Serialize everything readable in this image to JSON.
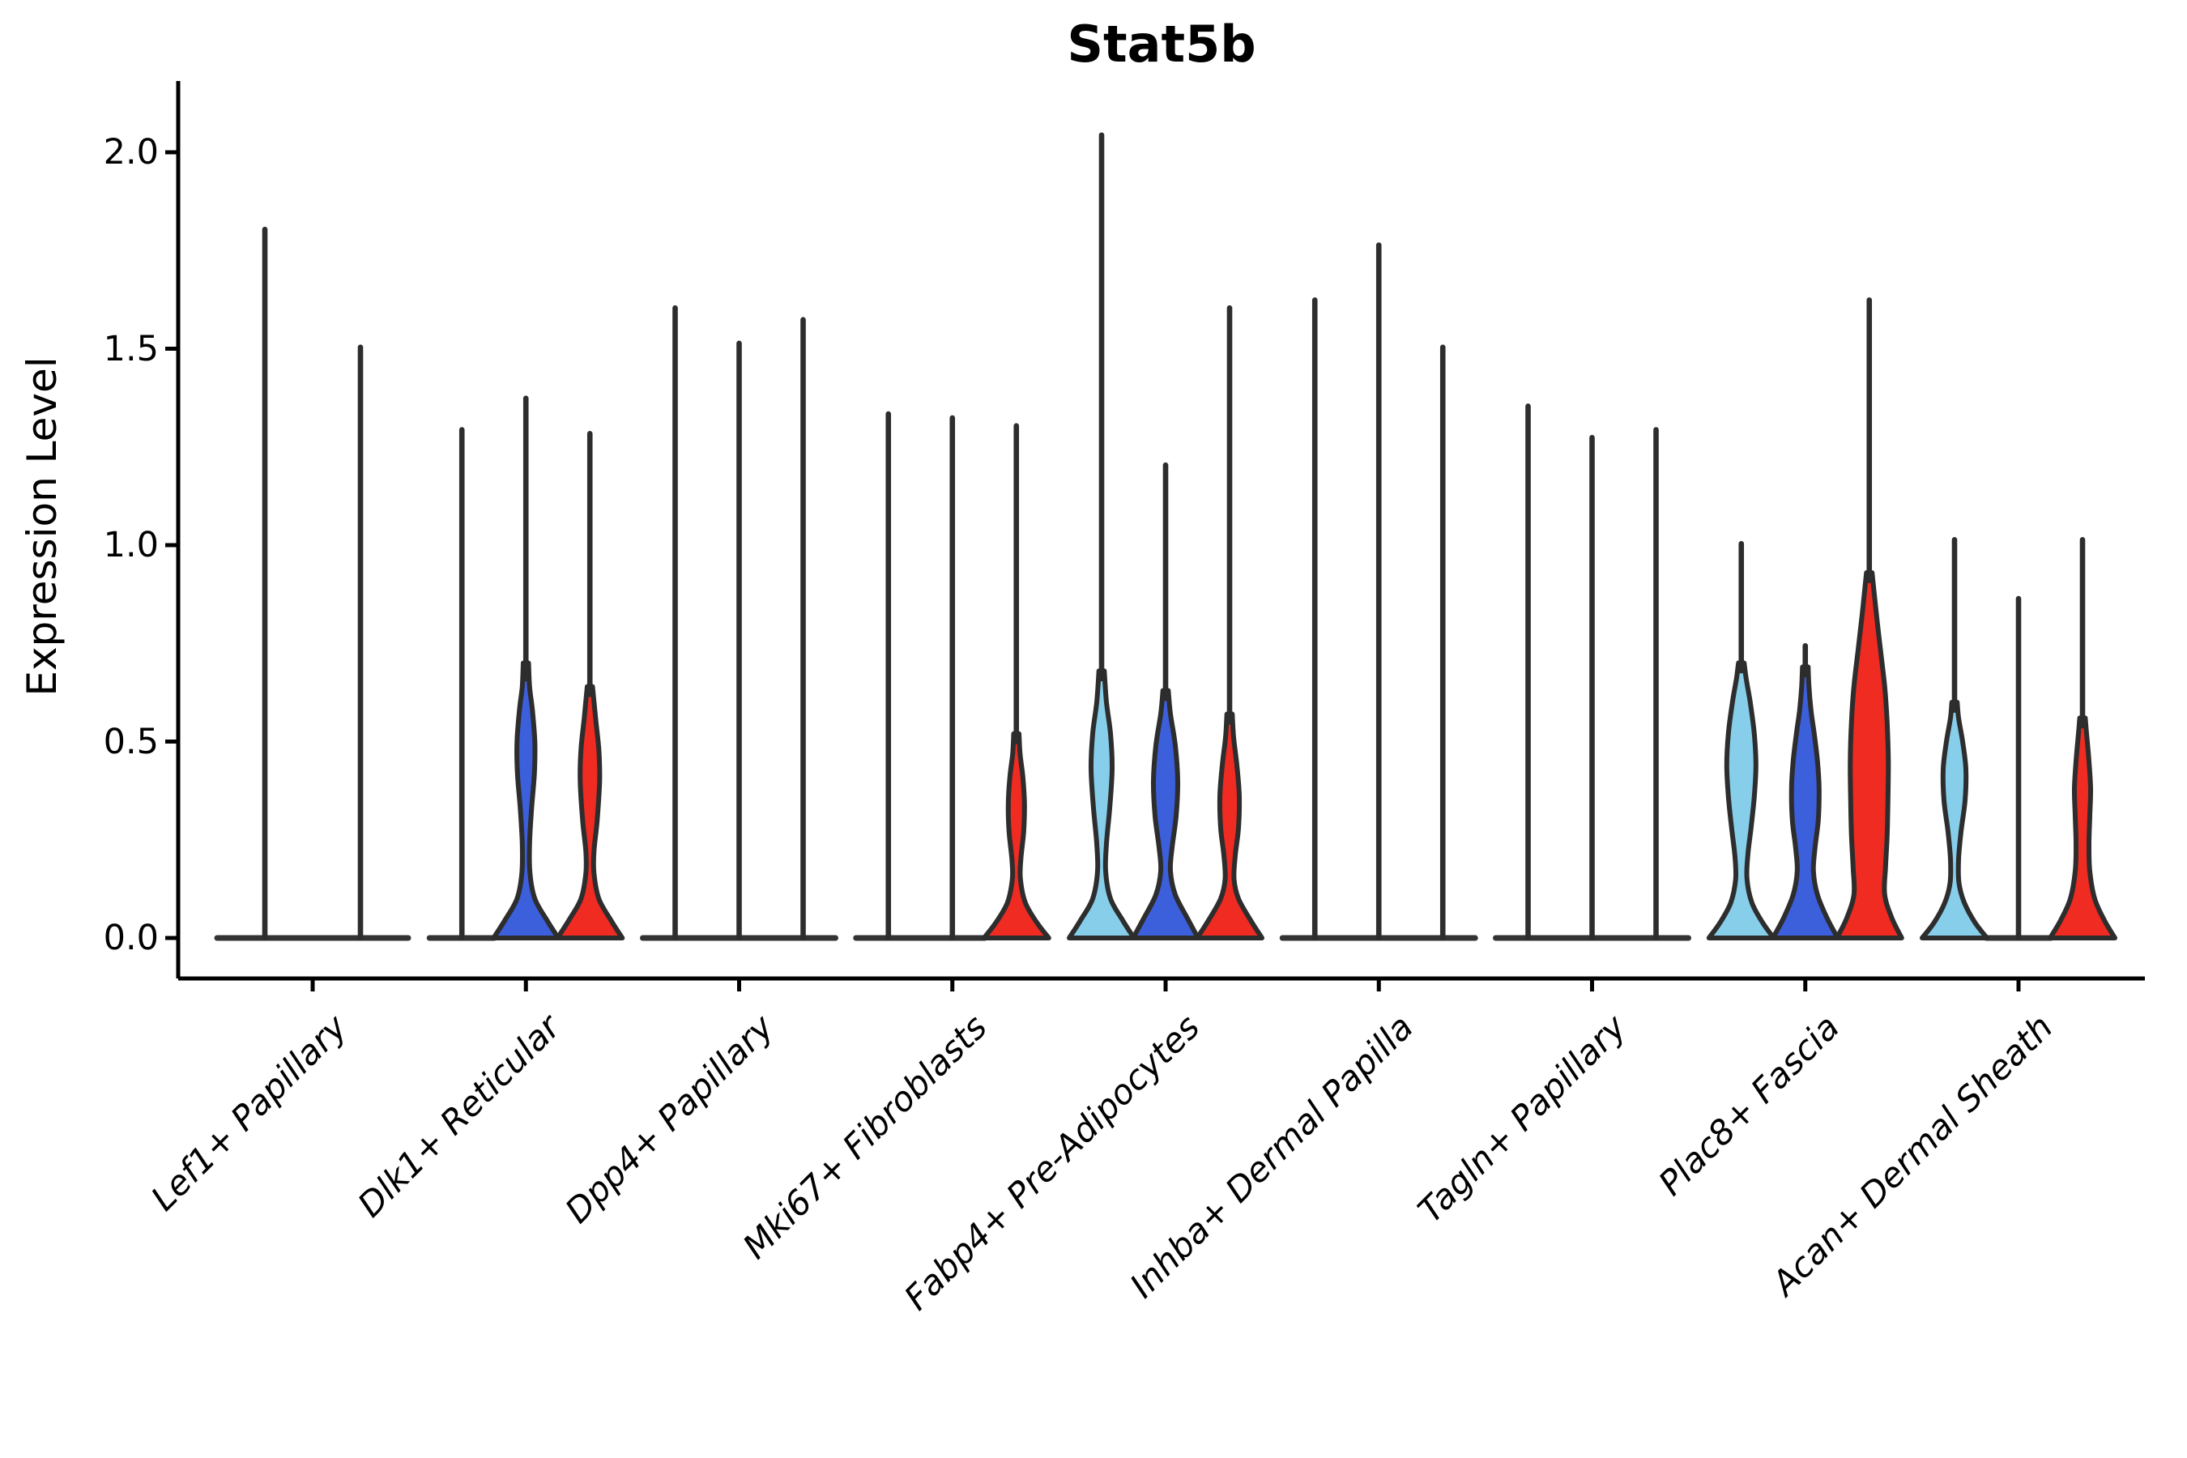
{
  "title": "Stat5b",
  "axis": {
    "ylabel": "Expression Level",
    "ytick_labels": [
      "0.0",
      "0.5",
      "1.0",
      "1.5",
      "2.0"
    ]
  },
  "style": {
    "outline_color": "#2d2d2d",
    "spike_color": "#2d2d2d",
    "baseline_color": "#333333",
    "spine_color": "#000000",
    "series_colors": {
      "lightblue": "#87CEEB",
      "blue": "#3C5FDC",
      "red": "#EF2B22"
    }
  },
  "chart_data": {
    "type": "violin",
    "title": "Stat5b",
    "xlabel": "",
    "ylabel": "Expression Level",
    "ylim": [
      -0.1,
      2.2
    ],
    "yticks": [
      0.0,
      0.5,
      1.0,
      1.5,
      2.0
    ],
    "grid": false,
    "legend": "none",
    "series": [
      {
        "name": "lightblue",
        "color": "#87CEEB"
      },
      {
        "name": "blue",
        "color": "#3C5FDC"
      },
      {
        "name": "red",
        "color": "#EF2B22"
      }
    ],
    "note": "Each violin: max = top of expression spike; flat violins collapse to a line at 0 (all-zero expression); profile = [expression_value, half_width_px] density outline control points.",
    "categories": [
      {
        "label": "Lef1+ Papillary",
        "violins": [
          {
            "series": "lightblue",
            "offset": -59,
            "flat": true,
            "flat_hw": 59,
            "max": 1.81
          },
          {
            "series": "blue",
            "offset": 59,
            "flat": true,
            "flat_hw": 59,
            "max": 1.51
          }
        ]
      },
      {
        "label": "Dlk1+ Reticular",
        "violins": [
          {
            "series": "lightblue",
            "offset": -79,
            "flat": true,
            "flat_hw": 40,
            "max": 1.3
          },
          {
            "series": "blue",
            "offset": 0,
            "flat": false,
            "max": 1.38,
            "spike_from": 0.66,
            "profile": [
              [
                0,
                40
              ],
              [
                0.045,
                26
              ],
              [
                0.1,
                11
              ],
              [
                0.165,
                5
              ],
              [
                0.24,
                4.5
              ],
              [
                0.33,
                7
              ],
              [
                0.42,
                10.5
              ],
              [
                0.5,
                11
              ],
              [
                0.58,
                8
              ],
              [
                0.64,
                4.5
              ],
              [
                0.7,
                3.3
              ]
            ]
          },
          {
            "series": "red",
            "offset": 79,
            "flat": false,
            "max": 1.29,
            "spike_from": 0.62,
            "profile": [
              [
                0,
                40
              ],
              [
                0.045,
                26
              ],
              [
                0.1,
                11
              ],
              [
                0.165,
                5
              ],
              [
                0.22,
                5
              ],
              [
                0.3,
                9
              ],
              [
                0.4,
                12
              ],
              [
                0.48,
                11
              ],
              [
                0.56,
                7
              ],
              [
                0.64,
                3.3
              ]
            ]
          }
        ]
      },
      {
        "label": "Dpp4+ Papillary",
        "violins": [
          {
            "series": "lightblue",
            "offset": -79,
            "flat": true,
            "flat_hw": 40,
            "max": 1.61
          },
          {
            "series": "blue",
            "offset": 0,
            "flat": true,
            "flat_hw": 40,
            "max": 1.52
          },
          {
            "series": "red",
            "offset": 79,
            "flat": true,
            "flat_hw": 40,
            "max": 1.58
          }
        ]
      },
      {
        "label": "Mki67+ Fibroblasts",
        "violins": [
          {
            "series": "lightblue",
            "offset": -79,
            "flat": true,
            "flat_hw": 40,
            "max": 1.34
          },
          {
            "series": "blue",
            "offset": 0,
            "flat": true,
            "flat_hw": 40,
            "max": 1.33
          },
          {
            "series": "red",
            "offset": 79,
            "flat": false,
            "max": 1.31,
            "spike_from": 0.5,
            "profile": [
              [
                0,
                40
              ],
              [
                0.04,
                25
              ],
              [
                0.09,
                11
              ],
              [
                0.15,
                5
              ],
              [
                0.2,
                5.5
              ],
              [
                0.27,
                9
              ],
              [
                0.34,
                10
              ],
              [
                0.41,
                8
              ],
              [
                0.47,
                4.5
              ],
              [
                0.52,
                3.3
              ]
            ]
          }
        ]
      },
      {
        "label": "Fabp4+ Pre-Adipocytes",
        "violins": [
          {
            "series": "lightblue",
            "offset": -79,
            "flat": false,
            "max": 2.05,
            "spike_from": 0.66,
            "profile": [
              [
                0,
                40
              ],
              [
                0.045,
                26
              ],
              [
                0.1,
                11
              ],
              [
                0.17,
                5
              ],
              [
                0.24,
                6
              ],
              [
                0.33,
                10
              ],
              [
                0.43,
                13
              ],
              [
                0.52,
                11
              ],
              [
                0.6,
                6
              ],
              [
                0.68,
                3.3
              ]
            ]
          },
          {
            "series": "blue",
            "offset": 0,
            "flat": false,
            "max": 1.21,
            "spike_from": 0.61,
            "profile": [
              [
                0,
                40
              ],
              [
                0.05,
                27
              ],
              [
                0.11,
                12
              ],
              [
                0.17,
                6
              ],
              [
                0.23,
                8
              ],
              [
                0.31,
                13
              ],
              [
                0.4,
                15
              ],
              [
                0.49,
                12
              ],
              [
                0.57,
                6
              ],
              [
                0.63,
                3.3
              ]
            ]
          },
          {
            "series": "red",
            "offset": 79,
            "flat": false,
            "max": 1.61,
            "spike_from": 0.55,
            "profile": [
              [
                0,
                40
              ],
              [
                0.045,
                26
              ],
              [
                0.1,
                11
              ],
              [
                0.15,
                5.5
              ],
              [
                0.21,
                7
              ],
              [
                0.28,
                11
              ],
              [
                0.36,
                12
              ],
              [
                0.44,
                9
              ],
              [
                0.51,
                5
              ],
              [
                0.57,
                3.3
              ]
            ]
          }
        ]
      },
      {
        "label": "Inhba+ Dermal Papilla",
        "violins": [
          {
            "series": "lightblue",
            "offset": -79,
            "flat": true,
            "flat_hw": 40,
            "max": 1.63
          },
          {
            "series": "blue",
            "offset": 0,
            "flat": true,
            "flat_hw": 40,
            "max": 1.77
          },
          {
            "series": "red",
            "offset": 79,
            "flat": true,
            "flat_hw": 40,
            "max": 1.51
          }
        ]
      },
      {
        "label": "Tagln+ Papillary",
        "violins": [
          {
            "series": "lightblue",
            "offset": -79,
            "flat": true,
            "flat_hw": 40,
            "max": 1.36
          },
          {
            "series": "blue",
            "offset": 0,
            "flat": true,
            "flat_hw": 40,
            "max": 1.28
          },
          {
            "series": "red",
            "offset": 79,
            "flat": true,
            "flat_hw": 40,
            "max": 1.3
          }
        ]
      },
      {
        "label": "Plac8+ Fascia",
        "violins": [
          {
            "series": "lightblue",
            "offset": -79,
            "flat": false,
            "max": 1.01,
            "spike_from": 0.68,
            "profile": [
              [
                0,
                40
              ],
              [
                0.04,
                26
              ],
              [
                0.09,
                13
              ],
              [
                0.15,
                7
              ],
              [
                0.21,
                8
              ],
              [
                0.28,
                12
              ],
              [
                0.36,
                16
              ],
              [
                0.44,
                18
              ],
              [
                0.52,
                16
              ],
              [
                0.6,
                11
              ],
              [
                0.66,
                6
              ],
              [
                0.7,
                3.5
              ]
            ]
          },
          {
            "series": "blue",
            "offset": 0,
            "flat": false,
            "max": 0.75,
            "spike_from": 0.67,
            "profile": [
              [
                0,
                40
              ],
              [
                0.05,
                27
              ],
              [
                0.11,
                15
              ],
              [
                0.17,
                10
              ],
              [
                0.23,
                12
              ],
              [
                0.3,
                16
              ],
              [
                0.38,
                17
              ],
              [
                0.45,
                15
              ],
              [
                0.52,
                11
              ],
              [
                0.58,
                7
              ],
              [
                0.64,
                4.5
              ],
              [
                0.69,
                3.5
              ]
            ]
          },
          {
            "series": "red",
            "offset": 79,
            "flat": false,
            "max": 1.63,
            "spike_from": 0.91,
            "profile": [
              [
                0,
                40
              ],
              [
                0.05,
                28
              ],
              [
                0.11,
                19
              ],
              [
                0.18,
                20
              ],
              [
                0.26,
                22
              ],
              [
                0.35,
                23
              ],
              [
                0.45,
                23.5
              ],
              [
                0.55,
                22
              ],
              [
                0.64,
                19
              ],
              [
                0.73,
                14
              ],
              [
                0.82,
                9
              ],
              [
                0.93,
                3.4
              ]
            ]
          }
        ]
      },
      {
        "label": "Acan+ Dermal Sheath",
        "violins": [
          {
            "series": "lightblue",
            "offset": -79,
            "flat": false,
            "max": 1.02,
            "spike_from": 0.58,
            "profile": [
              [
                0,
                40
              ],
              [
                0.04,
                25
              ],
              [
                0.09,
                12
              ],
              [
                0.14,
                5.5
              ],
              [
                0.2,
                5
              ],
              [
                0.27,
                8
              ],
              [
                0.35,
                13
              ],
              [
                0.43,
                14
              ],
              [
                0.5,
                10
              ],
              [
                0.56,
                5
              ],
              [
                0.6,
                3.3
              ]
            ]
          },
          {
            "series": "blue",
            "offset": 0,
            "flat": true,
            "flat_hw": 40,
            "max": 0.87
          },
          {
            "series": "red",
            "offset": 79,
            "flat": false,
            "max": 1.02,
            "spike_from": 0.54,
            "profile": [
              [
                0,
                40
              ],
              [
                0.045,
                27
              ],
              [
                0.1,
                15
              ],
              [
                0.17,
                9
              ],
              [
                0.24,
                8
              ],
              [
                0.31,
                9
              ],
              [
                0.38,
                10
              ],
              [
                0.45,
                8
              ],
              [
                0.52,
                5
              ],
              [
                0.56,
                3.4
              ]
            ]
          }
        ]
      }
    ]
  }
}
